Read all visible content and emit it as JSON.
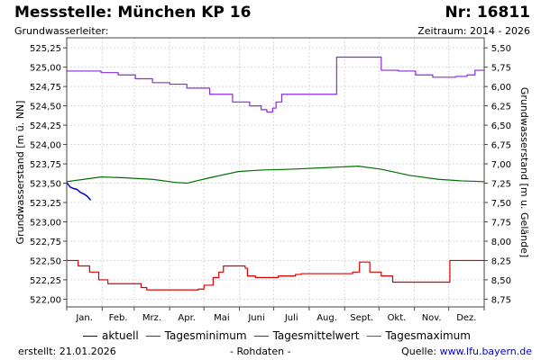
{
  "header": {
    "title": "Messstelle: München KP 16",
    "number": "Nr: 16811",
    "aquifer": "Grundwasserleiter:",
    "period": "Zeitraum: 2014 - 2026"
  },
  "footer": {
    "created_label": "erstellt:",
    "created_date": "21.01.2026",
    "note": "- Rohdaten -",
    "source_label": "Quelle:",
    "source_url": "www.lfu.bayern.de"
  },
  "colors": {
    "aktuell": "#0000cc",
    "minimum": "#dd0000",
    "mittel": "#007000",
    "maximum": "#8a2be2",
    "grid": "#d8d8d8"
  },
  "chart_data": {
    "type": "line",
    "title": "",
    "xlabel": "",
    "ylabel": "Grundwasserstand [m ü. NN]",
    "ylabel_right": "Grundwasserstand [m u. Gelände]",
    "xlim": [
      0,
      365
    ],
    "ylim": [
      521.9,
      525.38
    ],
    "ylim_right": [
      8.85,
      5.37
    ],
    "grid": true,
    "legend_position": "bottom",
    "x_ticks": [
      {
        "label": "Jan.",
        "x": 15.5
      },
      {
        "label": "Feb.",
        "x": 45
      },
      {
        "label": "Mrz.",
        "x": 74.5
      },
      {
        "label": "Apr.",
        "x": 105
      },
      {
        "label": "Mai",
        "x": 135.5
      },
      {
        "label": "Juni",
        "x": 166
      },
      {
        "label": "Juli",
        "x": 196.5
      },
      {
        "label": "Aug.",
        "x": 227.5
      },
      {
        "label": "Sept.",
        "x": 258
      },
      {
        "label": "Okt.",
        "x": 288.5
      },
      {
        "label": "Nov.",
        "x": 319
      },
      {
        "label": "Dez.",
        "x": 349.5
      }
    ],
    "y_ticks": [
      522.0,
      522.25,
      522.5,
      522.75,
      523.0,
      523.25,
      523.5,
      523.75,
      524.0,
      524.25,
      524.5,
      524.75,
      525.0,
      525.25
    ],
    "y_tick_labels": [
      "522,00",
      "522,25",
      "522,50",
      "522,75",
      "523,00",
      "523,25",
      "523,50",
      "523,75",
      "524,00",
      "524,25",
      "524,50",
      "524,75",
      "525,00",
      "525,25"
    ],
    "y_ticks_right": [
      5.5,
      5.75,
      6.0,
      6.25,
      6.5,
      6.75,
      7.0,
      7.25,
      7.5,
      7.75,
      8.0,
      8.25,
      8.5,
      8.75
    ],
    "y_tick_labels_right": [
      "5,50",
      "5,75",
      "6,00",
      "6,25",
      "6,50",
      "6,75",
      "7,00",
      "7,25",
      "7,50",
      "7,75",
      "8,00",
      "8,25",
      "8,50",
      "8,75"
    ],
    "series": [
      {
        "name": "aktuell",
        "color": "#0000cc",
        "points": [
          [
            0,
            523.51
          ],
          [
            3,
            523.45
          ],
          [
            6,
            523.43
          ],
          [
            9,
            523.42
          ],
          [
            12,
            523.38
          ],
          [
            15,
            523.36
          ],
          [
            18,
            523.33
          ],
          [
            21,
            523.28
          ]
        ]
      },
      {
        "name": "Tagesminimum",
        "color": "#dd0000",
        "step": true,
        "points": [
          [
            0,
            522.5
          ],
          [
            10,
            522.43
          ],
          [
            20,
            522.35
          ],
          [
            28,
            522.25
          ],
          [
            36,
            522.2
          ],
          [
            50,
            522.2
          ],
          [
            65,
            522.15
          ],
          [
            70,
            522.12
          ],
          [
            105,
            522.12
          ],
          [
            115,
            522.13
          ],
          [
            120,
            522.18
          ],
          [
            128,
            522.28
          ],
          [
            133,
            522.35
          ],
          [
            137,
            522.43
          ],
          [
            150,
            522.43
          ],
          [
            156,
            522.4
          ],
          [
            158,
            522.3
          ],
          [
            165,
            522.28
          ],
          [
            185,
            522.3
          ],
          [
            200,
            522.32
          ],
          [
            205,
            522.33
          ],
          [
            226,
            522.33
          ],
          [
            250,
            522.35
          ],
          [
            256,
            522.48
          ],
          [
            265,
            522.35
          ],
          [
            275,
            522.3
          ],
          [
            285,
            522.22
          ],
          [
            305,
            522.22
          ],
          [
            325,
            522.22
          ],
          [
            335,
            522.5
          ],
          [
            365,
            522.5
          ]
        ]
      },
      {
        "name": "Tagesmittelwert",
        "color": "#007000",
        "points": [
          [
            0,
            523.52
          ],
          [
            15,
            523.55
          ],
          [
            30,
            523.58
          ],
          [
            50,
            523.57
          ],
          [
            75,
            523.55
          ],
          [
            95,
            523.51
          ],
          [
            105,
            523.5
          ],
          [
            125,
            523.57
          ],
          [
            150,
            523.65
          ],
          [
            170,
            523.67
          ],
          [
            195,
            523.68
          ],
          [
            225,
            523.7
          ],
          [
            255,
            523.72
          ],
          [
            275,
            523.68
          ],
          [
            300,
            523.6
          ],
          [
            325,
            523.55
          ],
          [
            345,
            523.53
          ],
          [
            365,
            523.52
          ]
        ]
      },
      {
        "name": "Tagesmaximum",
        "color": "#8a2be2",
        "step": true,
        "points": [
          [
            0,
            524.95
          ],
          [
            25,
            524.95
          ],
          [
            30,
            524.93
          ],
          [
            45,
            524.9
          ],
          [
            60,
            524.85
          ],
          [
            75,
            524.8
          ],
          [
            90,
            524.78
          ],
          [
            105,
            524.73
          ],
          [
            125,
            524.65
          ],
          [
            145,
            524.55
          ],
          [
            160,
            524.5
          ],
          [
            170,
            524.45
          ],
          [
            175,
            524.42
          ],
          [
            180,
            524.47
          ],
          [
            183,
            524.55
          ],
          [
            188,
            524.65
          ],
          [
            205,
            524.65
          ],
          [
            234,
            524.65
          ],
          [
            236,
            525.13
          ],
          [
            250,
            525.13
          ],
          [
            270,
            525.13
          ],
          [
            275,
            524.96
          ],
          [
            290,
            524.95
          ],
          [
            305,
            524.9
          ],
          [
            320,
            524.87
          ],
          [
            340,
            524.88
          ],
          [
            350,
            524.9
          ],
          [
            357,
            524.96
          ],
          [
            365,
            524.96
          ]
        ]
      }
    ]
  }
}
